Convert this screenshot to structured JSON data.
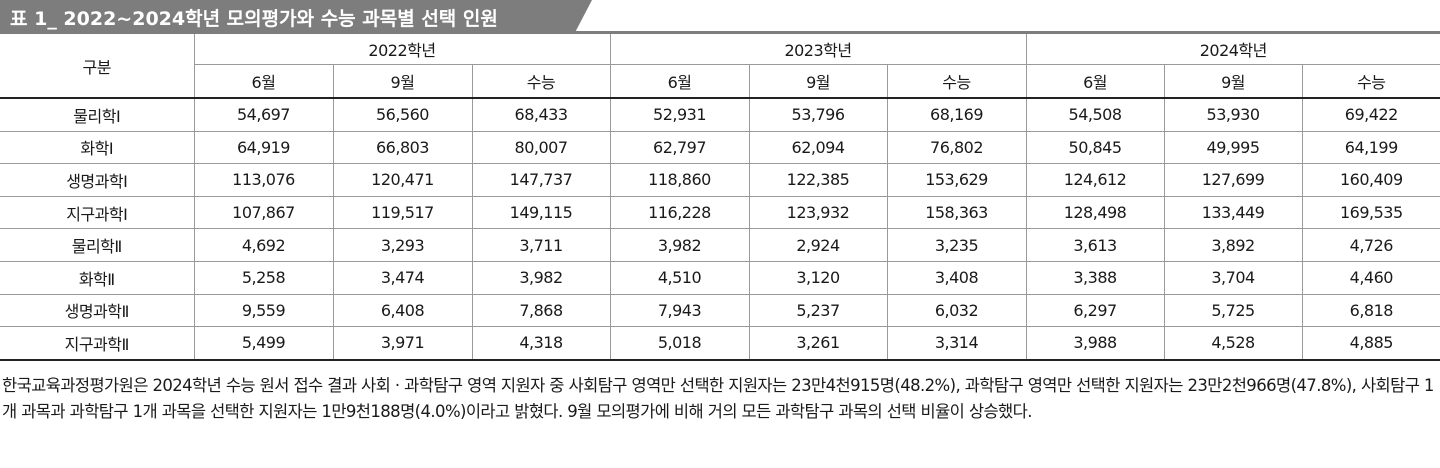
{
  "title": "표 1_ 2022~2024학년 모의평가와 수능 과목별 선택 인원",
  "table": {
    "corner_label": "구분",
    "year_headers": [
      "2022학년",
      "2023학년",
      "2024학년"
    ],
    "exam_headers": [
      "6월",
      "9월",
      "수능",
      "6월",
      "9월",
      "수능",
      "6월",
      "9월",
      "수능"
    ],
    "rows": [
      {
        "subject": "물리학Ⅰ",
        "values": [
          "54,697",
          "56,560",
          "68,433",
          "52,931",
          "53,796",
          "68,169",
          "54,508",
          "53,930",
          "69,422"
        ]
      },
      {
        "subject": "화학Ⅰ",
        "values": [
          "64,919",
          "66,803",
          "80,007",
          "62,797",
          "62,094",
          "76,802",
          "50,845",
          "49,995",
          "64,199"
        ]
      },
      {
        "subject": "생명과학Ⅰ",
        "values": [
          "113,076",
          "120,471",
          "147,737",
          "118,860",
          "122,385",
          "153,629",
          "124,612",
          "127,699",
          "160,409"
        ]
      },
      {
        "subject": "지구과학Ⅰ",
        "values": [
          "107,867",
          "119,517",
          "149,115",
          "116,228",
          "123,932",
          "158,363",
          "128,498",
          "133,449",
          "169,535"
        ]
      },
      {
        "subject": "물리학Ⅱ",
        "values": [
          "4,692",
          "3,293",
          "3,711",
          "3,982",
          "2,924",
          "3,235",
          "3,613",
          "3,892",
          "4,726"
        ]
      },
      {
        "subject": "화학Ⅱ",
        "values": [
          "5,258",
          "3,474",
          "3,982",
          "4,510",
          "3,120",
          "3,408",
          "3,388",
          "3,704",
          "4,460"
        ]
      },
      {
        "subject": "생명과학Ⅱ",
        "values": [
          "9,559",
          "6,408",
          "7,868",
          "7,943",
          "5,237",
          "6,032",
          "6,297",
          "5,725",
          "6,818"
        ]
      },
      {
        "subject": "지구과학Ⅱ",
        "values": [
          "5,499",
          "3,971",
          "4,318",
          "5,018",
          "3,261",
          "3,314",
          "3,988",
          "4,528",
          "4,885"
        ]
      }
    ]
  },
  "footnote": "한국교육과정평가원은 2024학년 수능 원서 접수 결과 사회 · 과학탐구 영역 지원자 중 사회탐구 영역만 선택한 지원자는 23만4천915명(48.2%), 과학탐구 영역만 선택한 지원자는 23만2천966명(47.8%), 사회탐구 1개 과목과 과학탐구 1개 과목을 선택한 지원자는 1만9천188명(4.0%)이라고 밝혔다. 9월 모의평가에 비해 거의 모든 과학탐구 과목의 선택 비율이 상승했다."
}
